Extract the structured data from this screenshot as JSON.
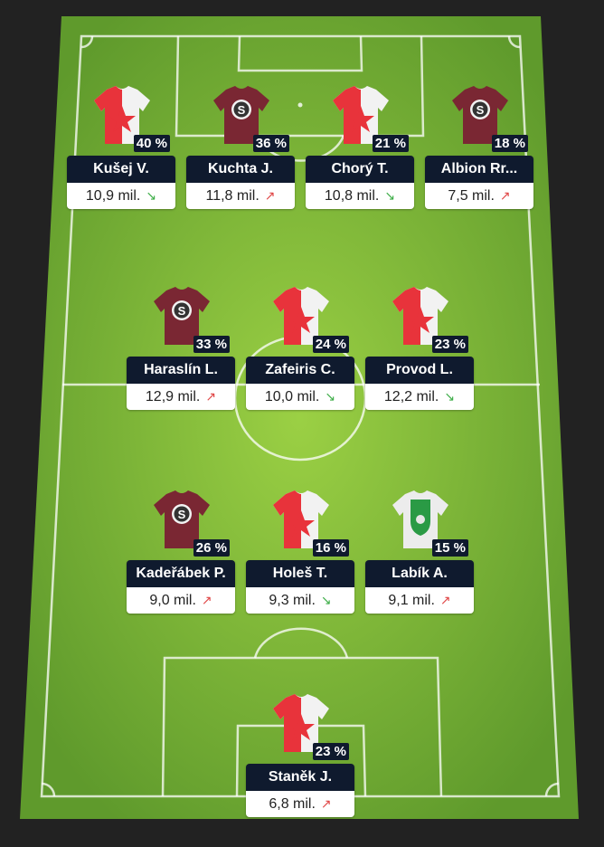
{
  "colors": {
    "pitch_light": "#8cc63f",
    "pitch_dark": "#5e9a2a",
    "card_bg": "#0f1a2e",
    "trend_up": "#e04848",
    "trend_down": "#3fae49"
  },
  "players": [
    {
      "name": "Kušej V.",
      "value": "10,9 mil.",
      "pct": "40 %",
      "trend": "down",
      "kit": "slavia"
    },
    {
      "name": "Kuchta J.",
      "value": "11,8 mil.",
      "pct": "36 %",
      "trend": "up",
      "kit": "sparta"
    },
    {
      "name": "Chorý T.",
      "value": "10,8 mil.",
      "pct": "21 %",
      "trend": "down",
      "kit": "slavia"
    },
    {
      "name": "Albion Rr...",
      "value": "7,5 mil.",
      "pct": "18 %",
      "trend": "up",
      "kit": "sparta"
    },
    {
      "name": "Haraslín L.",
      "value": "12,9 mil.",
      "pct": "33 %",
      "trend": "up",
      "kit": "sparta"
    },
    {
      "name": "Zafeiris C.",
      "value": "10,0 mil.",
      "pct": "24 %",
      "trend": "down",
      "kit": "slavia"
    },
    {
      "name": "Provod L.",
      "value": "12,2 mil.",
      "pct": "23 %",
      "trend": "down",
      "kit": "slavia"
    },
    {
      "name": "Kadeřábek P.",
      "value": "9,0 mil.",
      "pct": "26 %",
      "trend": "up",
      "kit": "sparta"
    },
    {
      "name": "Holeš T.",
      "value": "9,3 mil.",
      "pct": "16 %",
      "trend": "down",
      "kit": "slavia"
    },
    {
      "name": "Labík A.",
      "value": "9,1 mil.",
      "pct": "15 %",
      "trend": "up",
      "kit": "bohemians"
    },
    {
      "name": "Staněk J.",
      "value": "6,8 mil.",
      "pct": "23 %",
      "trend": "up",
      "kit": "slavia"
    }
  ]
}
